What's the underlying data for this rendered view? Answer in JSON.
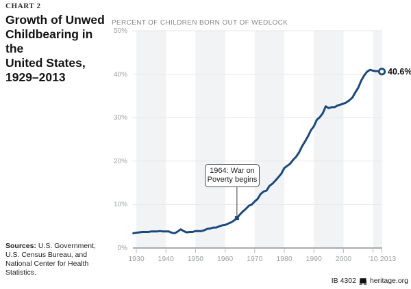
{
  "kicker": "CHART 2",
  "title_lines": [
    "Growth of Unwed",
    "Childbearing in the",
    "United States,",
    "1929–2013"
  ],
  "sources_label": "Sources:",
  "sources_rest": " U.S. Government, U.S. Census Bureau, and National Center for Health Statistics.",
  "footer": {
    "doc_id": "IB 4302",
    "site": "heritage.org",
    "logo": "liberty-bell-icon"
  },
  "chart_data": {
    "type": "line",
    "title": "PERCENT OF CHILDREN BORN OUT OF WEDLOCK",
    "series_name": "Percent of children born out of wedlock",
    "x": [
      1929,
      1930,
      1931,
      1932,
      1933,
      1934,
      1935,
      1936,
      1937,
      1938,
      1939,
      1940,
      1941,
      1942,
      1943,
      1944,
      1945,
      1946,
      1947,
      1948,
      1949,
      1950,
      1951,
      1952,
      1953,
      1954,
      1955,
      1956,
      1957,
      1958,
      1959,
      1960,
      1961,
      1962,
      1963,
      1964,
      1965,
      1966,
      1967,
      1968,
      1969,
      1970,
      1971,
      1972,
      1973,
      1974,
      1975,
      1976,
      1977,
      1978,
      1979,
      1980,
      1981,
      1982,
      1983,
      1984,
      1985,
      1986,
      1987,
      1988,
      1989,
      1990,
      1991,
      1992,
      1993,
      1994,
      1995,
      1996,
      1997,
      1998,
      1999,
      2000,
      2001,
      2002,
      2003,
      2004,
      2005,
      2006,
      2007,
      2008,
      2009,
      2010,
      2011,
      2012,
      2013
    ],
    "values": [
      3.4,
      3.5,
      3.6,
      3.7,
      3.7,
      3.7,
      3.8,
      3.8,
      3.8,
      3.9,
      3.8,
      3.8,
      3.8,
      3.5,
      3.4,
      3.8,
      4.3,
      3.9,
      3.6,
      3.7,
      3.7,
      3.9,
      3.9,
      3.9,
      4.1,
      4.4,
      4.5,
      4.7,
      4.7,
      5.0,
      5.2,
      5.3,
      5.6,
      5.9,
      6.3,
      6.9,
      7.7,
      8.4,
      9.0,
      9.7,
      10.0,
      10.7,
      11.3,
      12.4,
      13.0,
      13.2,
      14.3,
      14.8,
      15.5,
      16.3,
      17.1,
      18.4,
      18.9,
      19.4,
      20.3,
      21.0,
      22.0,
      23.4,
      24.5,
      25.7,
      27.1,
      28.0,
      29.5,
      30.1,
      31.0,
      32.6,
      32.2,
      32.4,
      32.4,
      32.8,
      33.0,
      33.2,
      33.5,
      34.0,
      34.6,
      35.8,
      36.9,
      38.5,
      39.7,
      40.6,
      41.0,
      40.8,
      40.7,
      40.7,
      40.6
    ],
    "xlim": [
      1929,
      2013
    ],
    "ylim": [
      0,
      50
    ],
    "grid": true,
    "legend": "none",
    "y_tick_values": [
      0,
      10,
      20,
      30,
      40,
      50
    ],
    "y_tick_labels": [
      "0%",
      "10%",
      "20%",
      "30%",
      "40%",
      "50%"
    ],
    "x_tick_years": [
      1930,
      1940,
      1950,
      1960,
      1970,
      1980,
      1990,
      2000,
      2010,
      2013
    ],
    "x_tick_labels": [
      "1930",
      "1940",
      "1950",
      "1960",
      "1970",
      "1980",
      "1990",
      "2000",
      "’10",
      "2013"
    ],
    "shaded_decades": [
      [
        1930,
        1940
      ],
      [
        1950,
        1960
      ],
      [
        1970,
        1980
      ],
      [
        1990,
        2000
      ],
      [
        2010,
        2013.3
      ]
    ],
    "line_color": "#18497f",
    "band_color": "#f1f3f5",
    "grid_color": "#e5e6e7",
    "axis_color": "#8d8f91",
    "tick_color": "#b4b6b8",
    "end_label": "40.6%",
    "end_point": {
      "year": 2013,
      "value": 40.6
    },
    "annotation": {
      "line1": "1964: War on",
      "line2": "Poverty begins",
      "year": 1964,
      "value": 6.9
    }
  }
}
